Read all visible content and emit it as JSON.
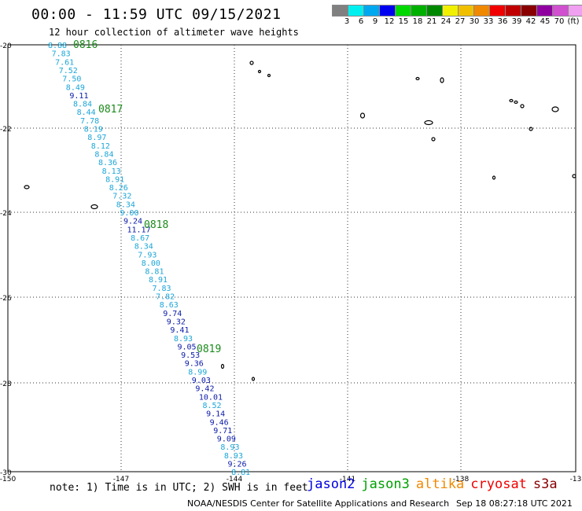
{
  "title": "00:00 - 11:59 UTC 09/15/2021",
  "subtitle": "12 hour collection of altimeter wave heights",
  "colors": {
    "light": "#1ca6d8",
    "dark": "#0a1aa8",
    "time_label": "#1a8a1a",
    "land": "#000000",
    "grid": "#222222"
  },
  "colorbar": {
    "colors": [
      "#808080",
      "#00f0f0",
      "#00a8f0",
      "#0000f0",
      "#00d800",
      "#00b000",
      "#008800",
      "#f0f000",
      "#f0c000",
      "#f08800",
      "#f00000",
      "#c00000",
      "#880000",
      "#9000a0",
      "#d050d0",
      "#f0a0f0",
      "#000000"
    ],
    "labels": [
      "3",
      "6",
      "9",
      "12",
      "15",
      "18",
      "21",
      "24",
      "27",
      "30",
      "33",
      "36",
      "39",
      "42",
      "45",
      "70",
      "(ft)"
    ]
  },
  "axes": {
    "x_ticks": [
      "-150",
      "-147",
      "-144",
      "-141",
      "-138",
      "-13"
    ],
    "y_ticks": [
      "-20",
      "-22",
      "-24",
      "-26",
      "-28",
      "-30"
    ]
  },
  "time_labels": [
    "0816",
    "0817",
    "0818",
    "0819"
  ],
  "wave_heights": [
    {
      "v": "8.88",
      "c": "light"
    },
    {
      "v": "7.83",
      "c": "light"
    },
    {
      "v": "7.61",
      "c": "light"
    },
    {
      "v": "7.52",
      "c": "light"
    },
    {
      "v": "7.50",
      "c": "light"
    },
    {
      "v": "8.49",
      "c": "light"
    },
    {
      "v": "9.11",
      "c": "dark"
    },
    {
      "v": "8.84",
      "c": "light"
    },
    {
      "v": "8.44",
      "c": "light"
    },
    {
      "v": "7.78",
      "c": "light"
    },
    {
      "v": "8.19",
      "c": "light"
    },
    {
      "v": "8.97",
      "c": "light"
    },
    {
      "v": "8.12",
      "c": "light"
    },
    {
      "v": "8.84",
      "c": "light"
    },
    {
      "v": "8.36",
      "c": "light"
    },
    {
      "v": "8.13",
      "c": "light"
    },
    {
      "v": "8.91",
      "c": "light"
    },
    {
      "v": "8.26",
      "c": "light"
    },
    {
      "v": "7.32",
      "c": "light"
    },
    {
      "v": "8.34",
      "c": "light"
    },
    {
      "v": "9.00",
      "c": "light"
    },
    {
      "v": "9.24",
      "c": "dark"
    },
    {
      "v": "11.17",
      "c": "dark"
    },
    {
      "v": "8.67",
      "c": "light"
    },
    {
      "v": "8.34",
      "c": "light"
    },
    {
      "v": "7.93",
      "c": "light"
    },
    {
      "v": "8.00",
      "c": "light"
    },
    {
      "v": "8.81",
      "c": "light"
    },
    {
      "v": "8.91",
      "c": "light"
    },
    {
      "v": "7.83",
      "c": "light"
    },
    {
      "v": "7.82",
      "c": "light"
    },
    {
      "v": "8.63",
      "c": "light"
    },
    {
      "v": "9.74",
      "c": "dark"
    },
    {
      "v": "9.32",
      "c": "dark"
    },
    {
      "v": "9.41",
      "c": "dark"
    },
    {
      "v": "8.93",
      "c": "light"
    },
    {
      "v": "9.05",
      "c": "dark"
    },
    {
      "v": "9.53",
      "c": "dark"
    },
    {
      "v": "9.36",
      "c": "dark"
    },
    {
      "v": "8.99",
      "c": "light"
    },
    {
      "v": "9.03",
      "c": "dark"
    },
    {
      "v": "9.42",
      "c": "dark"
    },
    {
      "v": "10.01",
      "c": "dark"
    },
    {
      "v": "8.52",
      "c": "light"
    },
    {
      "v": "9.14",
      "c": "dark"
    },
    {
      "v": "9.46",
      "c": "dark"
    },
    {
      "v": "9.71",
      "c": "dark"
    },
    {
      "v": "9.09",
      "c": "dark"
    },
    {
      "v": "8.93",
      "c": "light"
    },
    {
      "v": "8.93",
      "c": "light"
    },
    {
      "v": "9.26",
      "c": "dark"
    },
    {
      "v": "8.81",
      "c": "light"
    }
  ],
  "note": "note: 1) Time is in UTC; 2) SWH is in feet",
  "satellites": [
    {
      "name": "jason2",
      "color": "#0000e0"
    },
    {
      "name": "jason3",
      "color": "#00a000"
    },
    {
      "name": "altika",
      "color": "#f08800"
    },
    {
      "name": "cryosat",
      "color": "#f00000"
    },
    {
      "name": "s3a",
      "color": "#880000"
    }
  ],
  "credit": "NOAA/NESDIS Center for Satellite Applications and Research",
  "credit_time": "Sep 18 08:27:18 UTC 2021"
}
